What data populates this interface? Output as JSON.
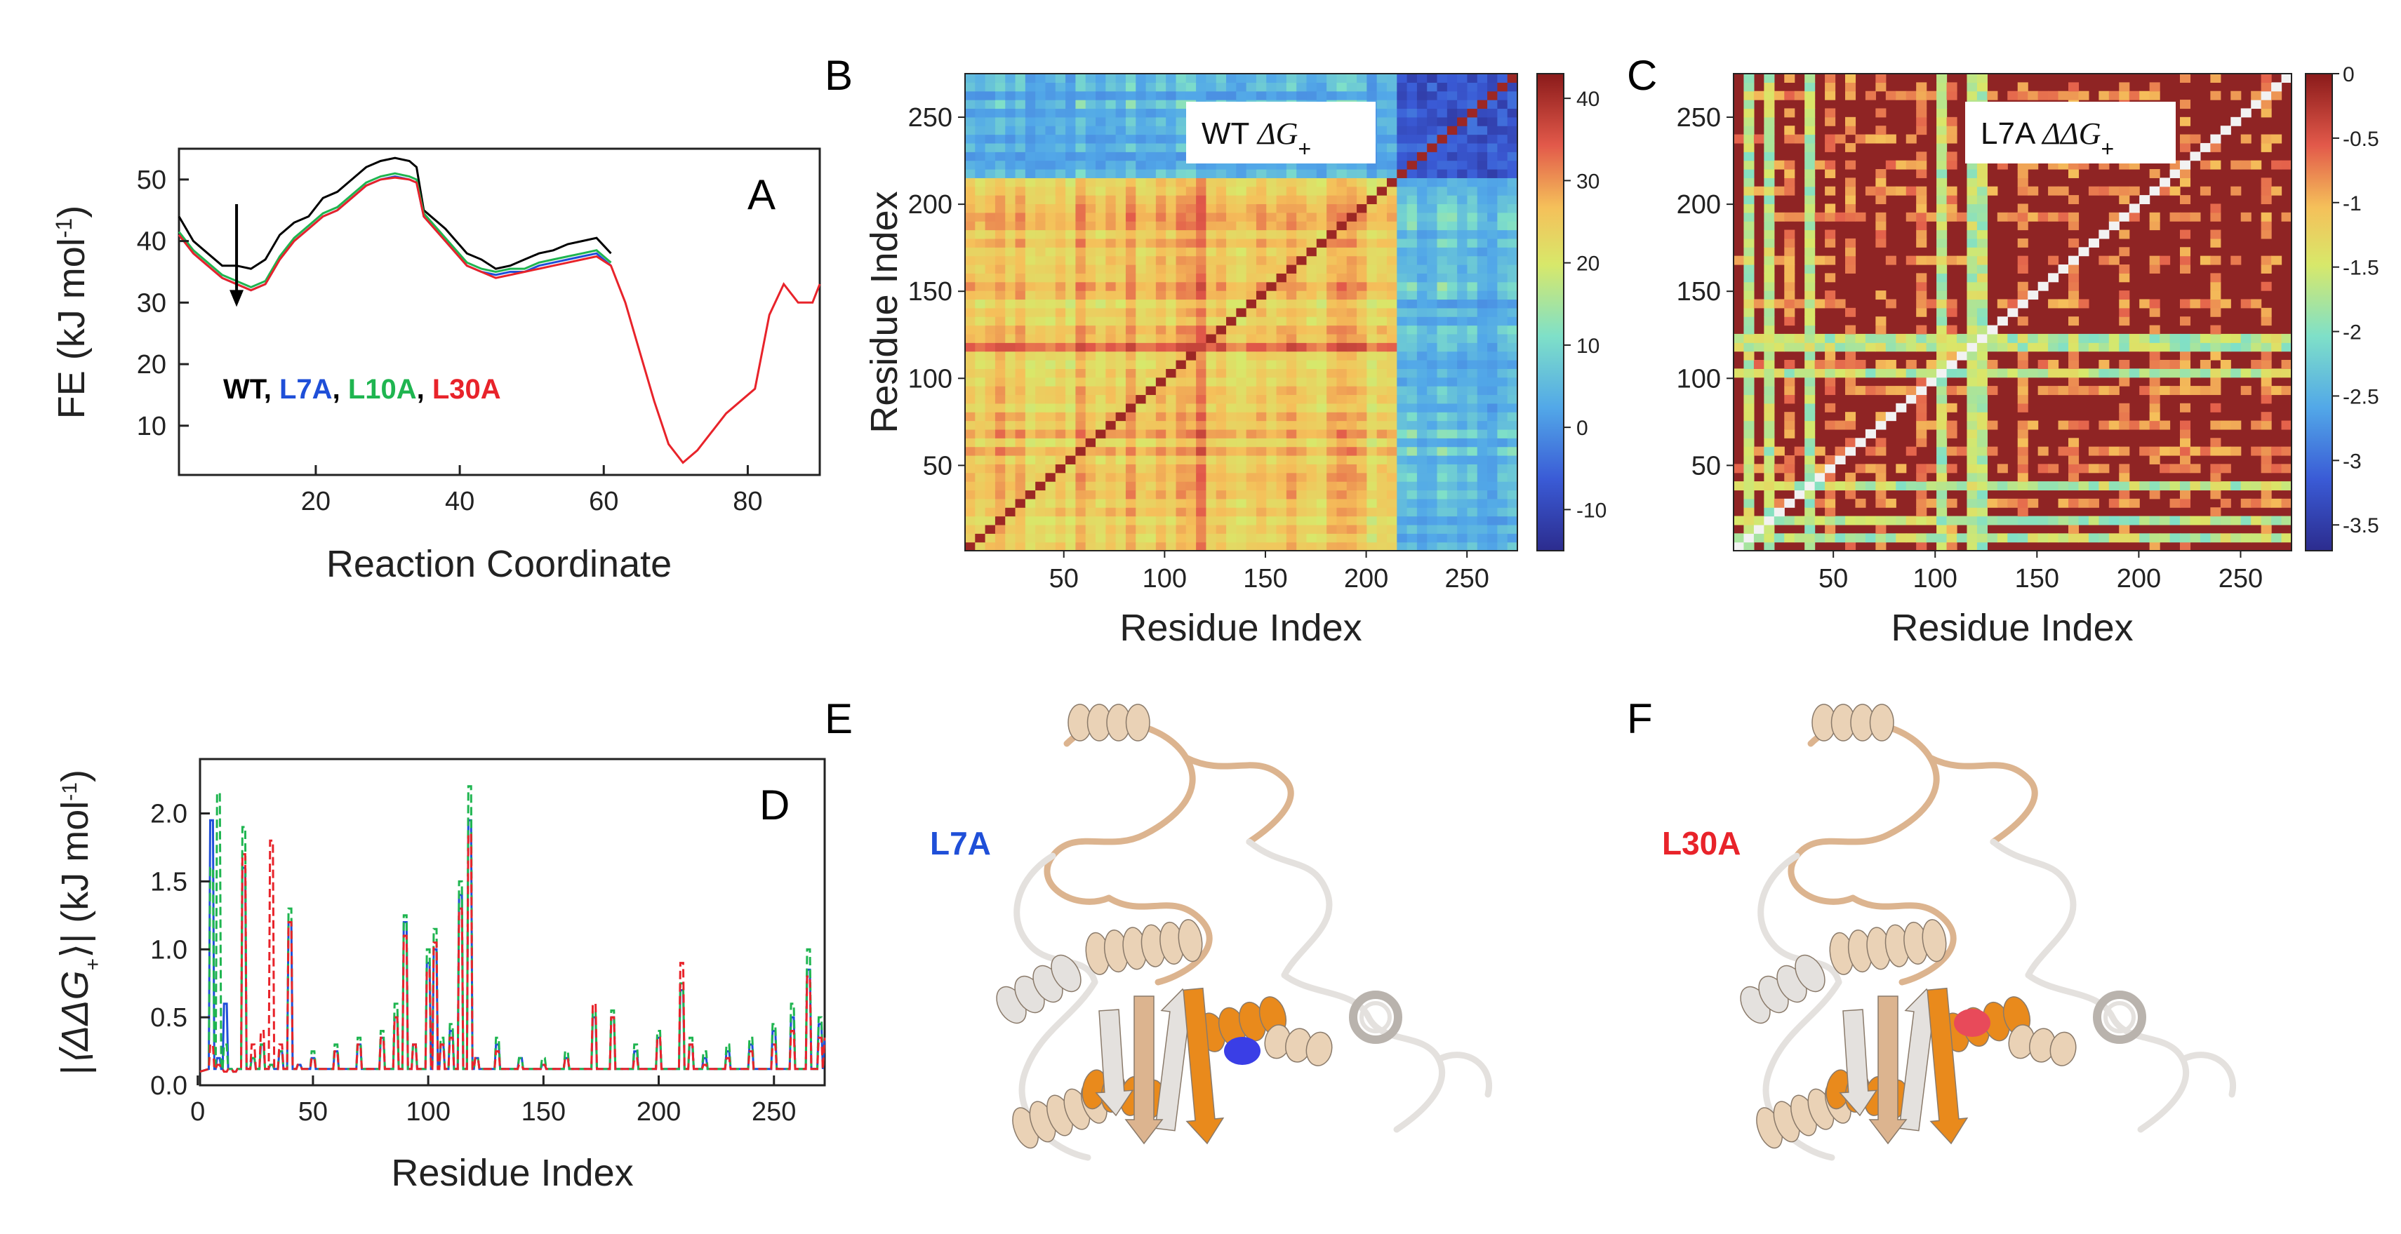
{
  "panels": {
    "A": "A",
    "B": "B",
    "C": "C",
    "D": "D",
    "E": "E",
    "F": "F"
  },
  "colors": {
    "WT": "#000000",
    "L7A": "#1f4fd8",
    "L10A": "#1fb550",
    "L30A": "#e8232a",
    "sand": "#e9c9a6",
    "orange": "#e98a1c",
    "gray_ribbon": "#d9d4cf"
  },
  "chart_data": [
    {
      "id": "A",
      "type": "line",
      "xlabel": "Reaction Coordinate",
      "ylabel": "FE (kJ mol",
      "ylabel_sup": "-1",
      "ylabel_end": ")",
      "xlim": [
        1,
        90
      ],
      "ylim": [
        2,
        55
      ],
      "xticks": [
        20,
        40,
        60,
        80
      ],
      "yticks": [
        10,
        20,
        30,
        40,
        50
      ],
      "panel_label": "A",
      "legend": [
        {
          "text": "WT",
          "color": "#000000"
        },
        {
          "text": ", ",
          "color": "#000000"
        },
        {
          "text": "L7A",
          "color": "#1f4fd8"
        },
        {
          "text": ", ",
          "color": "#000000"
        },
        {
          "text": "L10A",
          "color": "#1fb550"
        },
        {
          "text": ", ",
          "color": "#000000"
        },
        {
          "text": "L30A",
          "color": "#e8232a"
        }
      ],
      "arrow": {
        "x": 9,
        "y_start": 46,
        "y_end": 30
      },
      "series": [
        {
          "name": "WT",
          "color": "#000000",
          "x": [
            1,
            3,
            5,
            7,
            9,
            11,
            13,
            15,
            17,
            19,
            21,
            23,
            25,
            27,
            29,
            31,
            33,
            34,
            35,
            38,
            41,
            43,
            45,
            47,
            49,
            51,
            53,
            55,
            57,
            59,
            61
          ],
          "y": [
            44,
            40,
            38,
            36,
            36,
            35.5,
            37,
            41,
            43,
            44,
            47,
            48,
            50,
            52,
            53,
            53.5,
            53,
            52,
            45,
            42,
            38,
            37,
            35.5,
            36,
            37,
            38,
            38.5,
            39.5,
            40,
            40.5,
            38
          ]
        },
        {
          "name": "L7A",
          "color": "#1f4fd8",
          "x": [
            1,
            3,
            5,
            7,
            9,
            11,
            13,
            15,
            17,
            19,
            21,
            23,
            25,
            27,
            29,
            31,
            33,
            34,
            35,
            38,
            41,
            43,
            45,
            47,
            49,
            51,
            53,
            55,
            57,
            59,
            61
          ],
          "y": [
            41,
            38,
            36,
            34,
            33,
            32,
            33,
            37,
            40,
            42,
            44,
            45,
            47,
            49,
            50,
            50.5,
            50,
            49.5,
            44,
            40,
            36,
            35,
            34.5,
            35,
            35,
            36,
            36.5,
            37,
            37.5,
            38,
            36
          ]
        },
        {
          "name": "L10A",
          "color": "#1fb550",
          "x": [
            1,
            3,
            5,
            7,
            9,
            11,
            13,
            15,
            17,
            19,
            21,
            23,
            25,
            27,
            29,
            31,
            33,
            34,
            35,
            38,
            41,
            43,
            45,
            47,
            49,
            51,
            53,
            55,
            57,
            59,
            61
          ],
          "y": [
            41.5,
            38.5,
            36.5,
            34.5,
            33.5,
            32.5,
            33.5,
            37.5,
            40.5,
            42.5,
            44.5,
            45.5,
            47.5,
            49.5,
            50.5,
            51,
            50.5,
            50,
            44.5,
            40.5,
            36.5,
            35.5,
            35,
            35.5,
            35.5,
            36.5,
            37,
            37.5,
            38,
            38.5,
            36.5
          ]
        },
        {
          "name": "L30A",
          "color": "#e8232a",
          "x": [
            1,
            3,
            5,
            7,
            9,
            11,
            13,
            15,
            17,
            19,
            21,
            23,
            25,
            27,
            29,
            31,
            33,
            34,
            35,
            38,
            41,
            43,
            45,
            47,
            49,
            51,
            53,
            55,
            57,
            59,
            61,
            63,
            65,
            67,
            69,
            71,
            73,
            75,
            77,
            79,
            81,
            83,
            85,
            87,
            89,
            90
          ],
          "y": [
            41,
            38,
            36,
            34,
            33,
            32,
            33,
            37,
            40,
            42,
            44,
            45,
            47,
            49,
            50,
            50.3,
            50,
            49.5,
            44,
            40,
            36,
            35,
            34,
            34.5,
            35,
            35.5,
            36,
            36.5,
            37,
            37.5,
            36,
            30,
            22,
            14,
            7,
            4,
            6,
            9,
            12,
            14,
            16,
            28,
            33,
            30,
            30,
            33
          ]
        }
      ]
    },
    {
      "id": "B",
      "type": "heatmap",
      "title": "WT ",
      "title_sym": "ΔG",
      "title_sub": "+",
      "xlabel": "Residue Index",
      "ylabel": "Residue Index",
      "xlim": [
        1,
        275
      ],
      "ylim": [
        1,
        275
      ],
      "xticks": [
        50,
        100,
        150,
        200,
        250
      ],
      "yticks": [
        50,
        100,
        150,
        200,
        250
      ],
      "colorbar_range": [
        -15,
        43
      ],
      "colorbar_ticks": [
        40,
        30,
        20,
        10,
        0,
        -10
      ],
      "colormap": "jet",
      "panel_label": "B"
    },
    {
      "id": "C",
      "type": "heatmap",
      "title": "L7A ",
      "title_sym": "ΔΔG",
      "title_sub": "+",
      "xlabel": "Residue Index",
      "ylabel": "",
      "xlim": [
        1,
        275
      ],
      "ylim": [
        1,
        275
      ],
      "xticks": [
        50,
        100,
        150,
        200,
        250
      ],
      "yticks": [
        50,
        100,
        150,
        200,
        250
      ],
      "colorbar_range": [
        -3.7,
        0
      ],
      "colorbar_ticks": [
        "0",
        "-0.5",
        "-1",
        "-1.5",
        "-2",
        "-2.5",
        "-3",
        "-3.5"
      ],
      "colormap": "jet",
      "panel_label": "C"
    },
    {
      "id": "D",
      "type": "line",
      "xlabel": "Residue Index",
      "ylabel": "|⟨ΔΔG",
      "ylabel_sub": "+",
      "ylabel_end": "⟩| (kJ mol",
      "ylabel_sup": "-1",
      "ylabel_close": ")",
      "xlim": [
        1,
        272
      ],
      "ylim": [
        0,
        2.4
      ],
      "xticks": [
        0,
        50,
        100,
        150,
        200,
        250
      ],
      "yticks": [
        "0.0",
        "0.5",
        "1.0",
        "1.5",
        "2.0"
      ],
      "panel_label": "D",
      "series": [
        {
          "name": "L7A",
          "color": "#1f4fd8",
          "dash": false,
          "peaks": [
            [
              6,
              1.95
            ],
            [
              9,
              0.2
            ],
            [
              12,
              0.6
            ],
            [
              16,
              0.1
            ],
            [
              20,
              1.6
            ],
            [
              24,
              0.2
            ],
            [
              28,
              0.3
            ],
            [
              32,
              0.15
            ],
            [
              36,
              0.25
            ],
            [
              40,
              1.2
            ],
            [
              44,
              0.15
            ],
            [
              50,
              0.2
            ],
            [
              60,
              0.25
            ],
            [
              70,
              0.3
            ],
            [
              80,
              0.35
            ],
            [
              86,
              0.5
            ],
            [
              90,
              1.2
            ],
            [
              94,
              0.3
            ],
            [
              100,
              0.9
            ],
            [
              103,
              1.0
            ],
            [
              106,
              0.3
            ],
            [
              110,
              0.4
            ],
            [
              114,
              1.4
            ],
            [
              118,
              1.95
            ],
            [
              121,
              0.2
            ],
            [
              130,
              0.3
            ],
            [
              140,
              0.2
            ],
            [
              150,
              0.15
            ],
            [
              160,
              0.2
            ],
            [
              172,
              0.5
            ],
            [
              180,
              0.5
            ],
            [
              190,
              0.25
            ],
            [
              200,
              0.35
            ],
            [
              210,
              0.7
            ],
            [
              214,
              0.3
            ],
            [
              220,
              0.2
            ],
            [
              230,
              0.25
            ],
            [
              240,
              0.3
            ],
            [
              250,
              0.4
            ],
            [
              258,
              0.5
            ],
            [
              265,
              0.85
            ],
            [
              270,
              0.45
            ]
          ]
        },
        {
          "name": "L10A",
          "color": "#1fb550",
          "dash": true,
          "peaks": [
            [
              6,
              1.6
            ],
            [
              9,
              2.15
            ],
            [
              12,
              0.3
            ],
            [
              16,
              0.1
            ],
            [
              20,
              1.9
            ],
            [
              24,
              0.2
            ],
            [
              28,
              0.3
            ],
            [
              32,
              0.15
            ],
            [
              36,
              0.25
            ],
            [
              40,
              1.3
            ],
            [
              44,
              0.15
            ],
            [
              50,
              0.25
            ],
            [
              60,
              0.3
            ],
            [
              70,
              0.35
            ],
            [
              80,
              0.4
            ],
            [
              86,
              0.6
            ],
            [
              90,
              1.25
            ],
            [
              94,
              0.3
            ],
            [
              100,
              1.0
            ],
            [
              103,
              1.15
            ],
            [
              106,
              0.35
            ],
            [
              110,
              0.45
            ],
            [
              114,
              1.5
            ],
            [
              118,
              2.2
            ],
            [
              121,
              0.2
            ],
            [
              130,
              0.35
            ],
            [
              140,
              0.2
            ],
            [
              150,
              0.2
            ],
            [
              160,
              0.25
            ],
            [
              172,
              0.55
            ],
            [
              180,
              0.55
            ],
            [
              190,
              0.3
            ],
            [
              200,
              0.4
            ],
            [
              210,
              0.75
            ],
            [
              214,
              0.35
            ],
            [
              220,
              0.25
            ],
            [
              230,
              0.3
            ],
            [
              240,
              0.35
            ],
            [
              250,
              0.45
            ],
            [
              258,
              0.6
            ],
            [
              265,
              1.0
            ],
            [
              270,
              0.5
            ]
          ]
        },
        {
          "name": "L30A",
          "color": "#e8232a",
          "dash": true,
          "peaks": [
            [
              6,
              0.3
            ],
            [
              9,
              0.15
            ],
            [
              12,
              0.1
            ],
            [
              16,
              0.1
            ],
            [
              20,
              1.7
            ],
            [
              24,
              0.3
            ],
            [
              28,
              0.4
            ],
            [
              32,
              1.8
            ],
            [
              36,
              0.3
            ],
            [
              40,
              1.2
            ],
            [
              44,
              0.15
            ],
            [
              50,
              0.2
            ],
            [
              60,
              0.25
            ],
            [
              70,
              0.3
            ],
            [
              80,
              0.35
            ],
            [
              86,
              0.5
            ],
            [
              90,
              1.1
            ],
            [
              94,
              0.3
            ],
            [
              100,
              0.85
            ],
            [
              103,
              1.05
            ],
            [
              106,
              0.3
            ],
            [
              110,
              0.35
            ],
            [
              114,
              1.3
            ],
            [
              118,
              1.85
            ],
            [
              121,
              0.2
            ],
            [
              130,
              0.25
            ],
            [
              140,
              0.15
            ],
            [
              150,
              0.15
            ],
            [
              160,
              0.2
            ],
            [
              172,
              0.6
            ],
            [
              180,
              0.5
            ],
            [
              190,
              0.2
            ],
            [
              200,
              0.35
            ],
            [
              210,
              0.9
            ],
            [
              214,
              0.3
            ],
            [
              220,
              0.15
            ],
            [
              230,
              0.2
            ],
            [
              240,
              0.25
            ],
            [
              250,
              0.3
            ],
            [
              258,
              0.4
            ],
            [
              265,
              0.8
            ],
            [
              270,
              0.35
            ]
          ]
        }
      ]
    }
  ],
  "structures": {
    "E": {
      "label": "L7A",
      "label_color": "#1f4fd8",
      "marker_color": "#3a3ee6"
    },
    "F": {
      "label": "L30A",
      "label_color": "#e8232a",
      "marker_color": "#e84a5a"
    }
  }
}
